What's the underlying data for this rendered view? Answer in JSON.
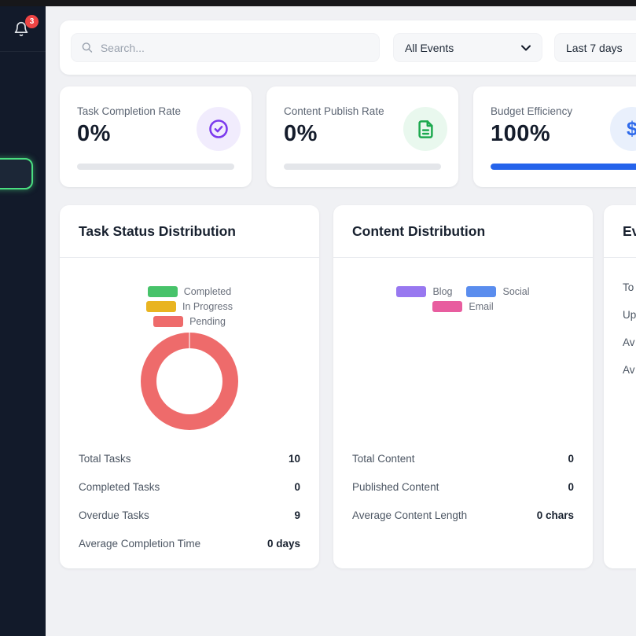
{
  "colors": {
    "accent_blue": "#2563EB",
    "badge_red": "#EF4444",
    "sidebar_bg": "#121A2A",
    "active_ring_green": "#4ADE80",
    "main_bg": "#F0F1F4"
  },
  "sidebar": {
    "notification_badge": "3"
  },
  "toolbar": {
    "search_placeholder": "Search...",
    "event_filter_value": "All Events",
    "date_filter_value": "Last 7 days"
  },
  "stat_cards": [
    {
      "title": "Task Completion Rate",
      "value": "0%",
      "icon": "circle-check-icon",
      "accent": "#7C3AED",
      "icon_bg": "#F1ECFD",
      "progress_pct": 0,
      "bar_fill": "#2563EB"
    },
    {
      "title": "Content Publish Rate",
      "value": "0%",
      "icon": "file-text-icon",
      "accent": "#1CA94F",
      "icon_bg": "#E9F8EE",
      "progress_pct": 0,
      "bar_fill": "#2563EB"
    },
    {
      "title": "Budget Efficiency",
      "value": "100%",
      "icon": "dollar-icon",
      "accent": "#2F6BEB",
      "icon_bg": "#E9F0FC",
      "progress_pct": 100,
      "bar_fill": "#2563EB"
    }
  ],
  "charts": [
    {
      "title": "Task Status Distribution",
      "legend": [
        {
          "label": "Completed",
          "color": "#47C36A"
        },
        {
          "label": "In Progress",
          "color": "#E9B421"
        },
        {
          "label": "Pending",
          "color": "#EE6B6B"
        }
      ],
      "stats": [
        {
          "label": "Total Tasks",
          "value": "10"
        },
        {
          "label": "Completed Tasks",
          "value": "0"
        },
        {
          "label": "Overdue Tasks",
          "value": "9"
        },
        {
          "label": "Average Completion Time",
          "value": "0 days"
        }
      ]
    },
    {
      "title": "Content Distribution",
      "legend": [
        {
          "label": "Blog",
          "color": "#9878F0"
        },
        {
          "label": "Social",
          "color": "#5A8DEE"
        },
        {
          "label": "Email",
          "color": "#E85D9F"
        }
      ],
      "stats": [
        {
          "label": "Total Content",
          "value": "0"
        },
        {
          "label": "Published Content",
          "value": "0"
        },
        {
          "label": "Average Content Length",
          "value": "0 chars"
        }
      ]
    },
    {
      "title": "Ev",
      "legend": [],
      "stats": [
        {
          "label": "To",
          "value": ""
        },
        {
          "label": "Up",
          "value": ""
        },
        {
          "label": "Av",
          "value": ""
        },
        {
          "label": "Av",
          "value": ""
        }
      ]
    }
  ],
  "chart_data": [
    {
      "type": "pie",
      "subtype": "donut",
      "title": "Task Status Distribution",
      "categories": [
        "Completed",
        "In Progress",
        "Pending"
      ],
      "values": [
        0,
        0,
        10
      ],
      "colors": [
        "#47C36A",
        "#E9B421",
        "#EE6B6B"
      ],
      "legend_position": "top",
      "notes": "Donut rendered fully in Pending color; Total Tasks 10, Completed 0, Overdue 9"
    },
    {
      "type": "pie",
      "subtype": "donut",
      "title": "Content Distribution",
      "categories": [
        "Blog",
        "Social",
        "Email"
      ],
      "values": [
        0,
        0,
        0
      ],
      "colors": [
        "#9878F0",
        "#5A8DEE",
        "#E85D9F"
      ],
      "legend_position": "top",
      "notes": "No slices drawn; all values zero, only legend visible"
    }
  ]
}
